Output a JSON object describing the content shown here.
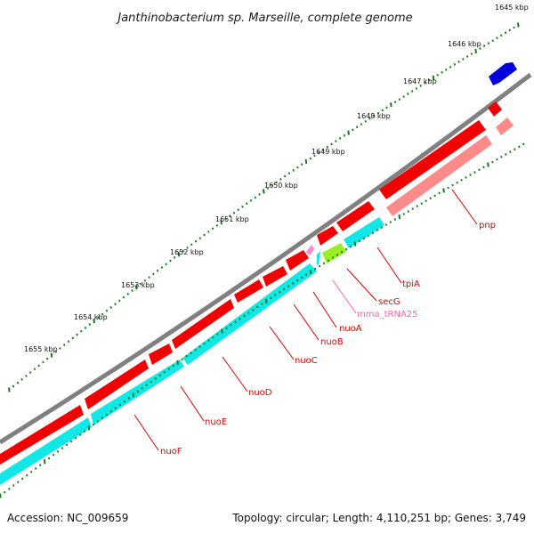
{
  "title": "Janthinobacterium sp. Marseille, complete genome",
  "footer": {
    "accession": "Accession: NC_009659",
    "summary": "Topology: circular; Length: 4,110,251 bp; Genes: 3,749"
  },
  "ticks": [
    "1645 kbp",
    "1646 kbp",
    "1647 kbp",
    "1648 kbp",
    "1649 kbp",
    "1650 kbp",
    "1651 kbp",
    "1652 kbp",
    "1653 kbp",
    "1654 kbp",
    "1655 kbp"
  ],
  "genes": [
    {
      "name": "pnp",
      "color": "#e00000"
    },
    {
      "name": "tpiA",
      "color": "#e00000"
    },
    {
      "name": "secG",
      "color": "#e00000"
    },
    {
      "name": "mma_tRNA25",
      "color": "#ff77bb"
    },
    {
      "name": "nuoA",
      "color": "#e00000"
    },
    {
      "name": "nuoB",
      "color": "#e00000"
    },
    {
      "name": "nuoC",
      "color": "#e00000"
    },
    {
      "name": "nuoD",
      "color": "#e00000"
    },
    {
      "name": "nuoE",
      "color": "#e00000"
    },
    {
      "name": "nuoF",
      "color": "#e00000"
    }
  ],
  "colors": {
    "backbone": "#808080",
    "cds_forward": "#f00000",
    "gene_mid": "#ff8a8a",
    "cds_cyan": "#10e8e8",
    "trna_green": "#99ee22",
    "trna_pink": "#ff88cc",
    "blue_feature": "#0000dd",
    "tick_green": "#1a7a1a",
    "label_red": "#e00000",
    "label_pink": "#ff66aa"
  }
}
